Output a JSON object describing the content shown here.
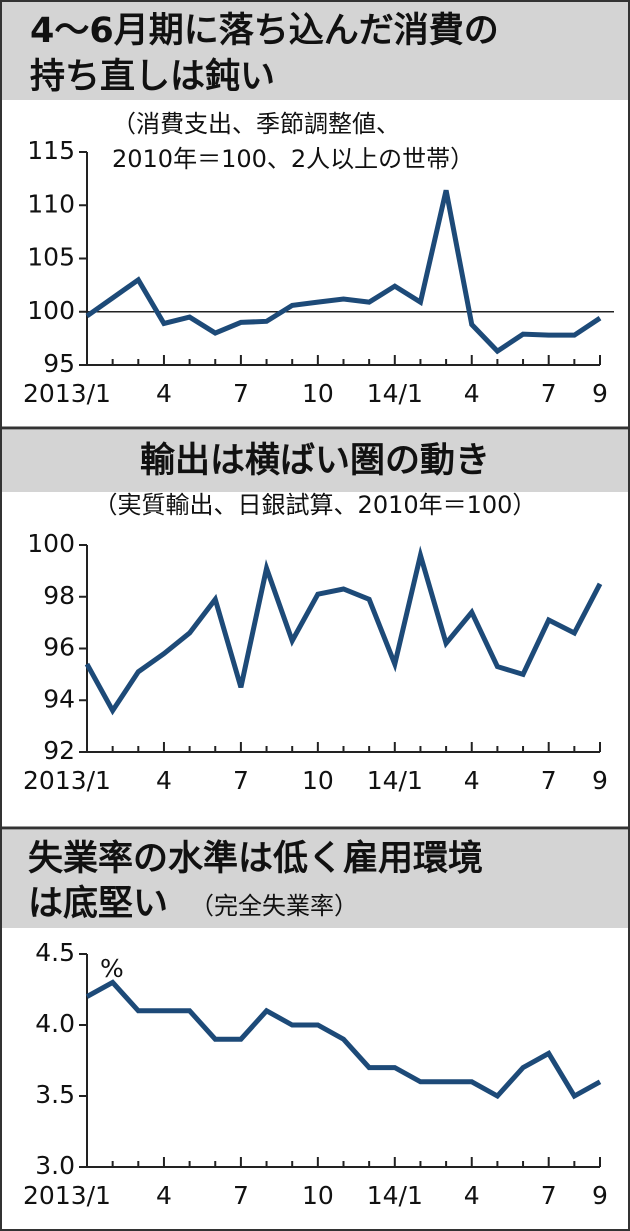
{
  "chart_data": [
    {
      "type": "line",
      "title": [
        "4〜6月期に落ち込んだ消費の",
        "持ち直しは鈍い"
      ],
      "subtitle": [
        "（消費支出、季節調整値、",
        "2010年＝100、2人以上の世帯）"
      ],
      "categories": [
        "2013/1",
        null,
        null,
        "4",
        null,
        null,
        "7",
        null,
        null,
        "10",
        null,
        null,
        "14/1",
        null,
        null,
        "4",
        null,
        null,
        "7",
        null,
        "9"
      ],
      "series": [
        {
          "color": "#1d4a78",
          "values": [
            99.6,
            101.3,
            103.0,
            98.9,
            99.5,
            98.0,
            99.0,
            99.1,
            100.6,
            100.9,
            101.2,
            100.9,
            102.4,
            100.9,
            111.4,
            98.8,
            96.3,
            97.9,
            97.8,
            97.8,
            99.4
          ]
        }
      ],
      "ylim": [
        95,
        115
      ],
      "yticks": [
        95,
        100,
        105,
        110,
        115
      ],
      "reference_line": 100
    },
    {
      "type": "line",
      "title": [
        "輸出は横ばい圏の動き"
      ],
      "subtitle": [
        "（実質輸出、日銀試算、2010年＝100）"
      ],
      "categories": [
        "2013/1",
        null,
        null,
        "4",
        null,
        null,
        "7",
        null,
        null,
        "10",
        null,
        null,
        "14/1",
        null,
        null,
        "4",
        null,
        null,
        "7",
        null,
        "9"
      ],
      "series": [
        {
          "color": "#1d4a78",
          "values": [
            95.4,
            93.6,
            95.1,
            95.8,
            96.6,
            97.9,
            94.5,
            99.1,
            96.3,
            98.1,
            98.3,
            97.9,
            95.4,
            99.6,
            96.2,
            97.4,
            95.3,
            95.0,
            97.1,
            96.6,
            98.5
          ]
        }
      ],
      "ylim": [
        92,
        100
      ],
      "yticks": [
        92,
        94,
        96,
        98,
        100
      ]
    },
    {
      "type": "line",
      "title": [
        "失業率の水準は低く雇用環境",
        "は底堅い"
      ],
      "subtitle": [
        "（完全失業率）"
      ],
      "unit_label": "%",
      "categories": [
        "2013/1",
        null,
        null,
        "4",
        null,
        null,
        "7",
        null,
        null,
        "10",
        null,
        null,
        "14/1",
        null,
        null,
        "4",
        null,
        null,
        "7",
        null,
        "9"
      ],
      "series": [
        {
          "color": "#1d4a78",
          "values": [
            4.2,
            4.3,
            4.1,
            4.1,
            4.1,
            3.9,
            3.9,
            4.1,
            4.0,
            4.0,
            3.9,
            3.7,
            3.7,
            3.6,
            3.6,
            3.6,
            3.5,
            3.7,
            3.8,
            3.5,
            3.6
          ]
        }
      ],
      "ylim": [
        3.0,
        4.5
      ],
      "yticks": [
        {
          "value": 3,
          "label": "3.0"
        },
        3.5,
        {
          "value": 4,
          "label": "4.0"
        },
        4.5
      ]
    }
  ]
}
